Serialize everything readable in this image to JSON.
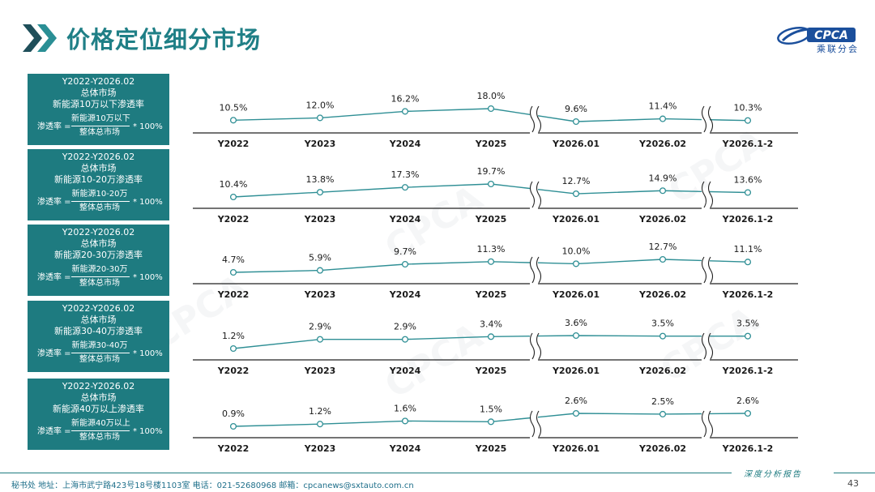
{
  "header": {
    "title": "价格定位细分市场",
    "logo_text": "CPCA",
    "logo_sub": "乘联分会"
  },
  "colors": {
    "accent": "#1e7b80",
    "title": "#1f7f86",
    "line": "#2f8f95",
    "axis": "#222222"
  },
  "panels": [
    {
      "box": {
        "period": "Y2022-Y2026.02",
        "market": "总体市场",
        "segment": "新能源10万以下渗透率",
        "formula_lhs": "渗透率 =",
        "numerator": "新能源10万以下",
        "denominator": "整体总市场",
        "formula_rhs": "* 100%"
      },
      "value_labels": [
        "10.5%",
        "12.0%",
        "16.2%",
        "18.0%",
        "9.6%",
        "11.4%",
        "10.3%"
      ]
    },
    {
      "box": {
        "period": "Y2022-Y2026.02",
        "market": "总体市场",
        "segment": "新能源10-20万渗透率",
        "formula_lhs": "渗透率 =",
        "numerator": "新能源10-20万",
        "denominator": "整体总市场",
        "formula_rhs": "* 100%"
      },
      "value_labels": [
        "10.4%",
        "13.8%",
        "17.3%",
        "19.7%",
        "12.7%",
        "14.9%",
        "13.6%"
      ]
    },
    {
      "box": {
        "period": "Y2022-Y2026.02",
        "market": "总体市场",
        "segment": "新能源20-30万渗透率",
        "formula_lhs": "渗透率 =",
        "numerator": "新能源20-30万",
        "denominator": "整体总市场",
        "formula_rhs": "* 100%"
      },
      "value_labels": [
        "4.7%",
        "5.9%",
        "9.7%",
        "11.3%",
        "10.0%",
        "12.7%",
        "11.1%"
      ]
    },
    {
      "box": {
        "period": "Y2022-Y2026.02",
        "market": "总体市场",
        "segment": "新能源30-40万渗透率",
        "formula_lhs": "渗透率 =",
        "numerator": "新能源30-40万",
        "denominator": "整体总市场",
        "formula_rhs": "* 100%"
      },
      "value_labels": [
        "1.2%",
        "2.9%",
        "2.9%",
        "3.4%",
        "3.6%",
        "3.5%",
        "3.5%"
      ]
    },
    {
      "box": {
        "period": "Y2022-Y2026.02",
        "market": "总体市场",
        "segment": "新能源40万以上渗透率",
        "formula_lhs": "渗透率 =",
        "numerator": "新能源40万以上",
        "denominator": "整体总市场",
        "formula_rhs": "* 100%"
      },
      "value_labels": [
        "0.9%",
        "1.2%",
        "1.6%",
        "1.5%",
        "2.6%",
        "2.5%",
        "2.6%"
      ]
    }
  ],
  "chart_data": [
    {
      "type": "line",
      "categories": [
        "Y2022",
        "Y2023",
        "Y2024",
        "Y2025",
        "Y2026.01",
        "Y2026.02",
        "Y2026.1-2"
      ],
      "series": [
        {
          "values": [
            10.5,
            12.0,
            16.2,
            18.0,
            9.6,
            11.4,
            10.3
          ]
        }
      ],
      "axis_breaks_after": [
        "Y2025",
        "Y2026.02"
      ],
      "y_unit": "%"
    },
    {
      "type": "line",
      "categories": [
        "Y2022",
        "Y2023",
        "Y2024",
        "Y2025",
        "Y2026.01",
        "Y2026.02",
        "Y2026.1-2"
      ],
      "series": [
        {
          "values": [
            10.4,
            13.8,
            17.3,
            19.7,
            12.7,
            14.9,
            13.6
          ]
        }
      ],
      "axis_breaks_after": [
        "Y2025",
        "Y2026.02"
      ],
      "y_unit": "%"
    },
    {
      "type": "line",
      "categories": [
        "Y2022",
        "Y2023",
        "Y2024",
        "Y2025",
        "Y2026.01",
        "Y2026.02",
        "Y2026.1-2"
      ],
      "series": [
        {
          "values": [
            4.7,
            5.9,
            9.7,
            11.3,
            10.0,
            12.7,
            11.1
          ]
        }
      ],
      "axis_breaks_after": [
        "Y2025",
        "Y2026.02"
      ],
      "y_unit": "%"
    },
    {
      "type": "line",
      "categories": [
        "Y2022",
        "Y2023",
        "Y2024",
        "Y2025",
        "Y2026.01",
        "Y2026.02",
        "Y2026.1-2"
      ],
      "series": [
        {
          "values": [
            1.2,
            2.9,
            2.9,
            3.4,
            3.6,
            3.5,
            3.5
          ]
        }
      ],
      "axis_breaks_after": [
        "Y2025",
        "Y2026.02"
      ],
      "y_unit": "%"
    },
    {
      "type": "line",
      "categories": [
        "Y2022",
        "Y2023",
        "Y2024",
        "Y2025",
        "Y2026.01",
        "Y2026.02",
        "Y2026.1-2"
      ],
      "series": [
        {
          "values": [
            0.9,
            1.2,
            1.6,
            1.5,
            2.6,
            2.5,
            2.6
          ]
        }
      ],
      "axis_breaks_after": [
        "Y2025",
        "Y2026.02"
      ],
      "y_unit": "%"
    }
  ],
  "footer": {
    "info": "秘书处   地址：上海市武宁路423号18号楼1103室   电话：021-52680968    邮箱：cpcanews@sxtauto.com.cn",
    "report": "深度分析报告",
    "page": "43"
  }
}
